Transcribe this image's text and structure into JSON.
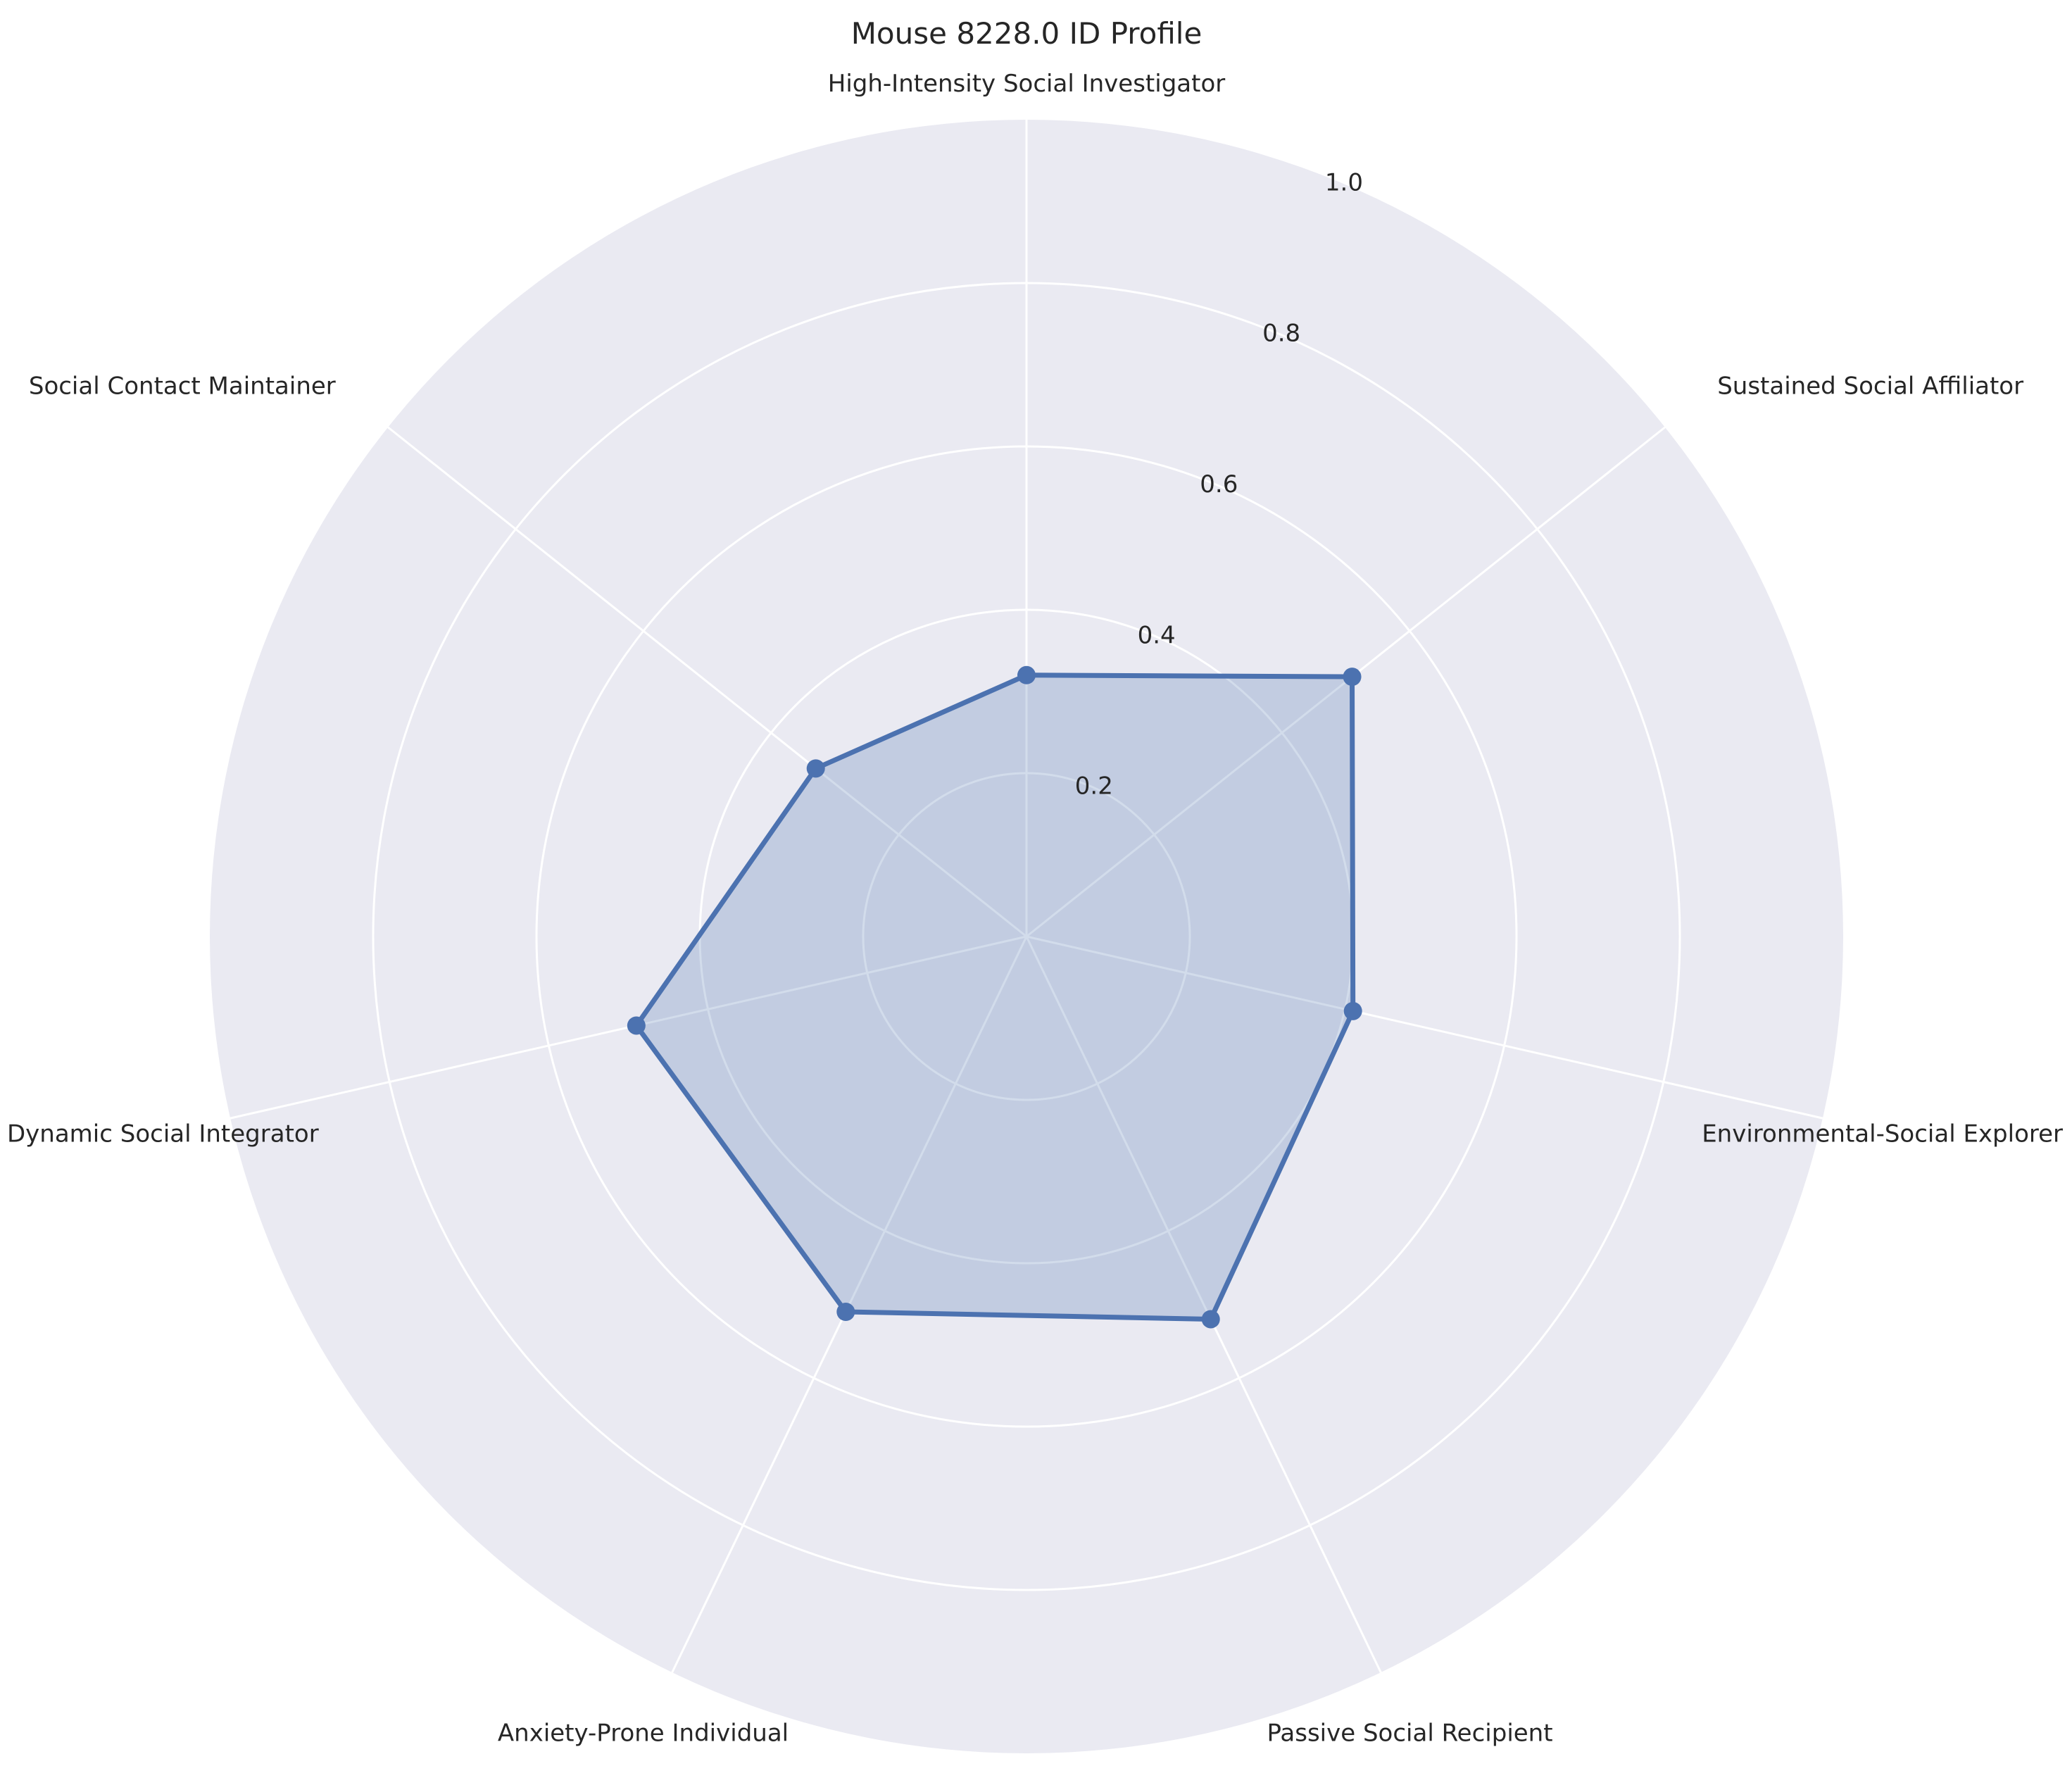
{
  "chart_data": {
    "type": "radar",
    "title": "Mouse 8228.0 ID Profile",
    "categories": [
      "High-Intensity Social Investigator",
      "Sustained Social Affiliator",
      "Environmental-Social Explorer",
      "Passive Social Recipient",
      "Anxiety-Prone Individual",
      "Dynamic Social Integrator",
      "Social Contact Maintainer"
    ],
    "values": [
      0.32,
      0.51,
      0.41,
      0.52,
      0.51,
      0.49,
      0.33
    ],
    "rlim": [
      0,
      1.0
    ],
    "radial_ticks": [
      0.2,
      0.4,
      0.6,
      0.8,
      1.0
    ],
    "radial_tick_labels": [
      "0.2",
      "0.4",
      "0.6",
      "0.8",
      "1.0"
    ],
    "grid": true,
    "colors": {
      "series": "#4c72b0",
      "background": "#eaeaf2",
      "grid": "#ffffff",
      "text": "#262626"
    }
  }
}
